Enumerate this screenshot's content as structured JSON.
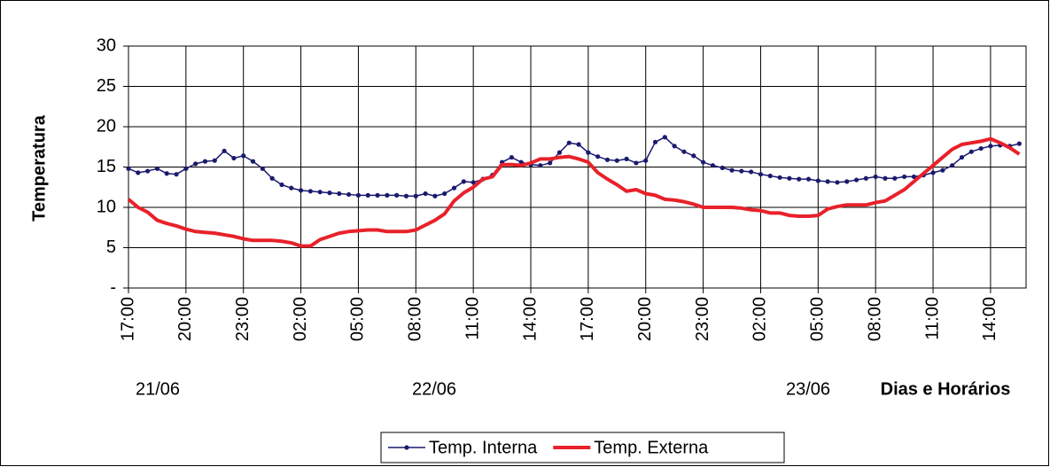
{
  "chart_data": {
    "type": "line",
    "y_label": "Temperatura",
    "x_label": "Dias e Horários",
    "annotations": [
      "21/06",
      "22/06",
      "23/06"
    ],
    "categories": [
      "17:00",
      null,
      null,
      null,
      null,
      null,
      "20:00",
      null,
      null,
      null,
      null,
      null,
      "23:00",
      null,
      null,
      null,
      null,
      null,
      "02:00",
      null,
      null,
      null,
      null,
      null,
      "05:00",
      null,
      null,
      null,
      null,
      null,
      "08:00",
      null,
      null,
      null,
      null,
      null,
      "11:00",
      null,
      null,
      null,
      null,
      null,
      "14:00",
      null,
      null,
      null,
      null,
      null,
      "17:00",
      null,
      null,
      null,
      null,
      null,
      "20:00",
      null,
      null,
      null,
      null,
      null,
      "23:00",
      null,
      null,
      null,
      null,
      null,
      "02:00",
      null,
      null,
      null,
      null,
      null,
      "05:00",
      null,
      null,
      null,
      null,
      null,
      "08:00",
      null,
      null,
      null,
      null,
      null,
      "11:00",
      null,
      null,
      null,
      null,
      null,
      "14:00",
      null,
      null,
      null
    ],
    "series": [
      {
        "name": "Temp. Interna",
        "color": "#1a1a6e",
        "values": [
          14.8,
          14.3,
          14.5,
          14.8,
          14.2,
          14.1,
          14.8,
          15.4,
          15.7,
          15.8,
          17.0,
          16.1,
          16.4,
          15.7,
          14.8,
          13.6,
          12.8,
          12.4,
          12.1,
          12.0,
          11.9,
          11.8,
          11.7,
          11.6,
          11.5,
          11.5,
          11.5,
          11.5,
          11.5,
          11.4,
          11.4,
          11.7,
          11.4,
          11.7,
          12.4,
          13.2,
          13.1,
          13.5,
          14.0,
          15.6,
          16.2,
          15.6,
          15.3,
          15.2,
          15.5,
          16.8,
          18.0,
          17.8,
          16.8,
          16.3,
          15.9,
          15.8,
          16.0,
          15.5,
          15.8,
          18.1,
          18.7,
          17.6,
          16.9,
          16.4,
          15.6,
          15.2,
          14.9,
          14.6,
          14.5,
          14.4,
          14.1,
          13.9,
          13.7,
          13.6,
          13.5,
          13.5,
          13.3,
          13.2,
          13.1,
          13.2,
          13.4,
          13.6,
          13.8,
          13.6,
          13.6,
          13.8,
          13.8,
          14.0,
          14.3,
          14.6,
          15.2,
          16.2,
          16.9,
          17.3,
          17.6,
          17.7,
          17.6,
          17.9
        ]
      },
      {
        "name": "Temp. Externa",
        "color": "#e8212a",
        "values": [
          11.0,
          10.0,
          9.4,
          8.4,
          8.0,
          7.7,
          7.3,
          7.0,
          6.9,
          6.8,
          6.6,
          6.4,
          6.1,
          5.9,
          5.9,
          5.9,
          5.8,
          5.6,
          5.2,
          5.2,
          6.0,
          6.4,
          6.8,
          7.0,
          7.1,
          7.2,
          7.2,
          7.0,
          7.0,
          7.0,
          7.2,
          7.8,
          8.4,
          9.2,
          10.8,
          11.8,
          12.5,
          13.5,
          13.8,
          15.3,
          15.3,
          15.2,
          15.5,
          16.0,
          16.0,
          16.2,
          16.3,
          16.0,
          15.6,
          14.3,
          13.5,
          12.8,
          12.0,
          12.2,
          11.7,
          11.5,
          11.0,
          10.9,
          10.7,
          10.4,
          10.0,
          10.0,
          10.0,
          10.0,
          9.9,
          9.7,
          9.6,
          9.3,
          9.3,
          9.0,
          8.9,
          8.9,
          9.0,
          9.8,
          10.1,
          10.3,
          10.3,
          10.3,
          10.6,
          10.8,
          11.5,
          12.2,
          13.2,
          14.2,
          15.2,
          16.2,
          17.2,
          17.8,
          18.0,
          18.2,
          18.5,
          18.0,
          17.4,
          16.6
        ]
      }
    ],
    "ylim": [
      0,
      30
    ],
    "yticks": [
      {
        "value": 0,
        "label": "-"
      },
      5,
      10,
      15,
      20,
      25,
      30
    ],
    "grid": true,
    "legend": "bottom"
  }
}
